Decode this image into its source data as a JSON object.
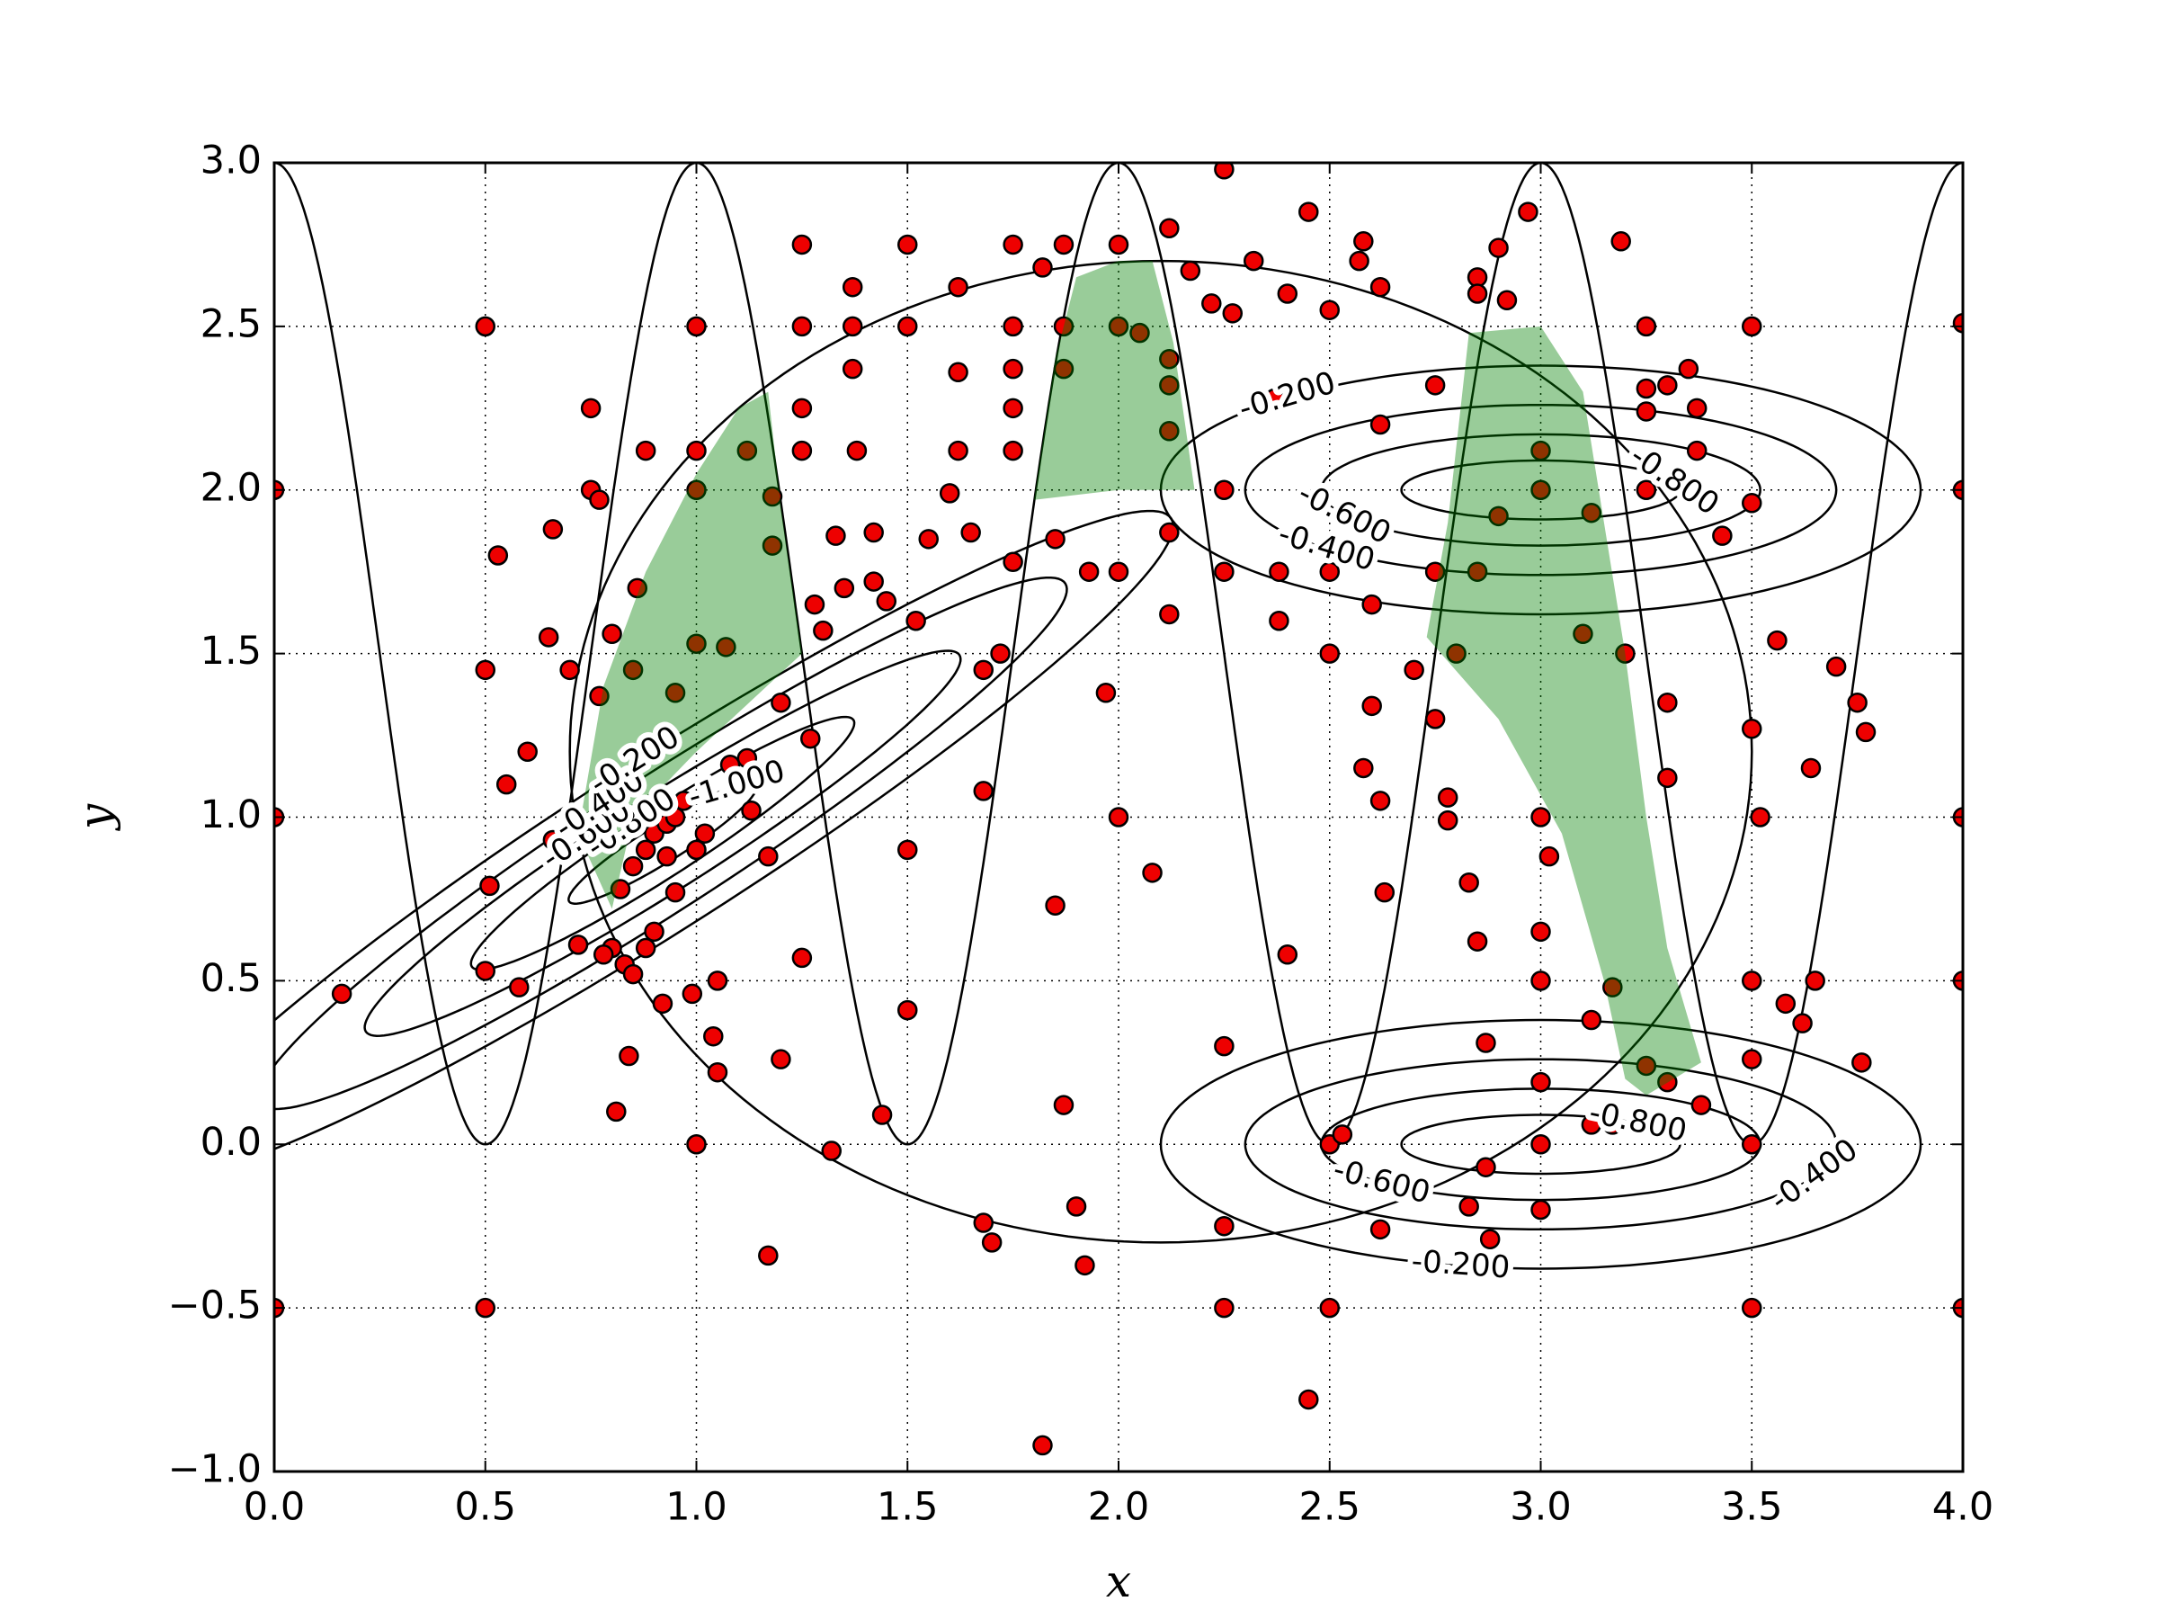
{
  "chart_data": {
    "type": "scatter",
    "x_label": "x",
    "y_label": "y",
    "xlim": [
      0,
      4
    ],
    "ylim": [
      -1,
      3
    ],
    "xticks": [
      {
        "value": 0,
        "label": "0.0"
      },
      {
        "value": 0.5,
        "label": "0.5"
      },
      {
        "value": 1,
        "label": "1.0"
      },
      {
        "value": 1.5,
        "label": "1.5"
      },
      {
        "value": 2,
        "label": "2.0"
      },
      {
        "value": 2.5,
        "label": "2.5"
      },
      {
        "value": 3,
        "label": "3.0"
      },
      {
        "value": 3.5,
        "label": "3.5"
      },
      {
        "value": 4,
        "label": "4.0"
      }
    ],
    "yticks": [
      {
        "value": -1,
        "label": "−1.0"
      },
      {
        "value": -0.5,
        "label": "−0.5"
      },
      {
        "value": 0,
        "label": "0.0"
      },
      {
        "value": 0.5,
        "label": "0.5"
      },
      {
        "value": 1,
        "label": "1.0"
      },
      {
        "value": 1.5,
        "label": "1.5"
      },
      {
        "value": 2,
        "label": "2.0"
      },
      {
        "value": 2.5,
        "label": "2.5"
      },
      {
        "value": 3,
        "label": "3.0"
      }
    ],
    "grid": true,
    "color": "#ee0000",
    "x": [
      0,
      0,
      0,
      0.5,
      0.5,
      0.5,
      0.5,
      0.53,
      0.55,
      0.6,
      0.65,
      0.66,
      0.75,
      0.75,
      0.77,
      0.7,
      0.16,
      0.51,
      0.58,
      0.66,
      0.77,
      0.8,
      0.85,
      0.86,
      0.88,
      1,
      1,
      1,
      1,
      0.95,
      1.07,
      1.12,
      1.18,
      1.18,
      1.25,
      1.25,
      1.25,
      1.25,
      1.37,
      1.37,
      1.37,
      1.38,
      1.5,
      1.5,
      1.62,
      1.62,
      1.62,
      1.75,
      1.75,
      1.75,
      1.75,
      1.75,
      1.82,
      1.87,
      1.87,
      1.87,
      2,
      2,
      2.05,
      2.12,
      2.17,
      2.25,
      2.22,
      2.27,
      2.32,
      2.4,
      2.45,
      2.5,
      2.57,
      2.58,
      2.62,
      2.37,
      2.62,
      2.75,
      2.85,
      2.85,
      2.9,
      2.92,
      2.97,
      3.25,
      3.5,
      3.19,
      4,
      4,
      4,
      4,
      4,
      3.5,
      3.5,
      3.65,
      3.58,
      3.5,
      3.52,
      3.64,
      3.7,
      3.75,
      3.77,
      3.56,
      3.3,
      3.3,
      3.35,
      3.37,
      3.37,
      3.5,
      3.43,
      3.3,
      3.25,
      3.25,
      3.25,
      3.2,
      3.1,
      3,
      3,
      3.12,
      2.9,
      2.85,
      2.75,
      2.8,
      2.7,
      2.6,
      2.5,
      2.5,
      2.38,
      2.38,
      2.25,
      2.25,
      2.12,
      2.12,
      2,
      1.97,
      1.72,
      1.68,
      1.68,
      1.5,
      1.5,
      1.44,
      1.32,
      1.25,
      1.2,
      1.17,
      1.04,
      1.05,
      1.05,
      0.99,
      1,
      0.81,
      0.84,
      0.92,
      2,
      2.08,
      1.85,
      1.87,
      1.9,
      1.92,
      1.68,
      1.7,
      1.82,
      2.25,
      2.25,
      2.25,
      2.4,
      2.45,
      2.5,
      2.5,
      2.53,
      2.62,
      2.63,
      2.62,
      2.58,
      2.6,
      2.75,
      2.78,
      2.78,
      2.83,
      2.85,
      2.87,
      2.87,
      2.88,
      2.83,
      3,
      3,
      3,
      3,
      3,
      3.02,
      3,
      3.12,
      3.17,
      3.25,
      3.3,
      3.38,
      3.5,
      3.62,
      3.76,
      3.5,
      3.12,
      3.17,
      1.12,
      1.17,
      1.08,
      1.13,
      0.83,
      0.8,
      0.78,
      0.72,
      0.85,
      0.88,
      0.9,
      0.95,
      0.85,
      0.88,
      0.9,
      0.93,
      0.95,
      0.97,
      1,
      1.02,
      0.93,
      0.82,
      1.3,
      1.35,
      1.42,
      1.45,
      1.52,
      1.55,
      1.6,
      1.28,
      1.27,
      1.2,
      1.33,
      1.42,
      1.65,
      1.75,
      1.85,
      1.93,
      2.12,
      2.12,
      2.12
    ],
    "values": [
      2,
      1,
      -0.5,
      2.5,
      -0.5,
      0.53,
      1.45,
      1.8,
      1.1,
      1.2,
      1.55,
      1.88,
      2.25,
      2,
      1.97,
      1.45,
      0.46,
      0.79,
      0.48,
      0.93,
      1.37,
      1.56,
      1.45,
      1.7,
      2.12,
      2.5,
      2.12,
      2,
      1.53,
      1.38,
      1.52,
      2.12,
      1.98,
      1.83,
      2.75,
      2.5,
      2.25,
      2.12,
      2.62,
      2.5,
      2.37,
      2.12,
      2.75,
      2.5,
      2.62,
      2.36,
      2.12,
      2.75,
      2.5,
      2.37,
      2.25,
      2.12,
      2.68,
      2.75,
      2.5,
      2.37,
      2.75,
      2.5,
      2.48,
      2.8,
      2.67,
      2.98,
      2.57,
      2.54,
      2.7,
      2.6,
      2.85,
      2.55,
      2.7,
      2.76,
      2.62,
      2.28,
      2.2,
      2.32,
      2.65,
      2.6,
      2.74,
      2.58,
      2.85,
      2.5,
      2.5,
      2.76,
      2.51,
      2,
      1,
      0.5,
      -0.5,
      -0.5,
      0.5,
      0.5,
      0.43,
      1.27,
      1,
      1.15,
      1.46,
      1.35,
      1.26,
      1.54,
      1.35,
      1.12,
      2.37,
      2.25,
      2.12,
      1.96,
      1.86,
      2.32,
      2.31,
      2.24,
      2,
      1.5,
      1.56,
      2.12,
      2,
      1.93,
      1.92,
      1.75,
      1.75,
      1.5,
      1.45,
      1.65,
      1.75,
      1.5,
      1.75,
      1.6,
      2,
      1.75,
      1.87,
      1.62,
      1.75,
      1.38,
      1.5,
      1.45,
      1.08,
      0.9,
      0.41,
      0.09,
      -0.02,
      0.57,
      0.26,
      -0.34,
      0.33,
      0.22,
      0.5,
      0.46,
      0,
      0.1,
      0.27,
      0.43,
      1,
      0.83,
      0.73,
      0.12,
      -0.19,
      -0.37,
      -0.24,
      -0.3,
      -0.92,
      -0.5,
      -0.25,
      0.3,
      0.58,
      -0.78,
      -0.5,
      0,
      0.03,
      -0.26,
      0.77,
      1.05,
      1.15,
      1.34,
      1.3,
      1.06,
      0.99,
      0.8,
      0.62,
      0.31,
      -0.07,
      -0.29,
      -0.19,
      -0.2,
      0,
      0.19,
      0.5,
      0.65,
      0.88,
      1,
      0.38,
      0.48,
      0.24,
      0.19,
      0.12,
      0.26,
      0.37,
      0.25,
      0,
      0.06,
      0.06,
      1.18,
      0.88,
      1.16,
      1.02,
      0.55,
      0.6,
      0.58,
      0.61,
      0.52,
      0.6,
      0.65,
      0.77,
      0.85,
      0.9,
      0.95,
      0.98,
      1,
      1.05,
      0.9,
      0.95,
      0.88,
      0.78,
      1.57,
      1.7,
      1.72,
      1.66,
      1.6,
      1.85,
      1.99,
      1.65,
      1.24,
      1.35,
      1.86,
      1.87,
      1.87,
      1.78,
      1.85,
      1.75,
      2.18,
      2.32,
      2.4
    ],
    "contours": [
      {
        "center": [
          3,
          2
        ],
        "a": [
          0.33,
          0
        ],
        "b": [
          0,
          0.09
        ],
        "level": -0.8,
        "level_label": "-0.800"
      },
      {
        "center": [
          3,
          2
        ],
        "a": [
          0.52,
          0
        ],
        "b": [
          0,
          0.17
        ],
        "level": -0.6,
        "level_label": "-0.600"
      },
      {
        "center": [
          3,
          2
        ],
        "a": [
          0.7,
          0
        ],
        "b": [
          0,
          0.26
        ],
        "level": -0.4,
        "level_label": "-0.400"
      },
      {
        "center": [
          3,
          2
        ],
        "a": [
          0.9,
          0
        ],
        "b": [
          0,
          0.38
        ],
        "level": -0.2,
        "level_label": "-0.200"
      },
      {
        "center": [
          3,
          0
        ],
        "a": [
          0.33,
          0
        ],
        "b": [
          0,
          0.09
        ],
        "level": -0.8,
        "level_label": "-0.800"
      },
      {
        "center": [
          3,
          0
        ],
        "a": [
          0.52,
          0
        ],
        "b": [
          0,
          0.17
        ],
        "level": -0.6,
        "level_label": "-0.600"
      },
      {
        "center": [
          3,
          0
        ],
        "a": [
          0.7,
          0
        ],
        "b": [
          0,
          0.26
        ],
        "level": -0.4,
        "level_label": "-0.400"
      },
      {
        "center": [
          3,
          0
        ],
        "a": [
          0.9,
          0
        ],
        "b": [
          0,
          0.38
        ],
        "level": -0.2,
        "level_label": "-0.200"
      },
      {
        "center": [
          0.92,
          0.92
        ],
        "a": [
          0.22,
          0.18
        ],
        "b": [
          -0.035,
          0.04
        ],
        "level": -1.0,
        "level_label": "-1.000"
      },
      {
        "center": [
          0.92,
          0.92
        ],
        "a": [
          0.45,
          0.38
        ],
        "b": [
          -0.06,
          0.07
        ],
        "level": -0.8,
        "level_label": "-0.800"
      },
      {
        "center": [
          0.92,
          0.92
        ],
        "a": [
          0.7,
          0.58
        ],
        "b": [
          -0.09,
          0.1
        ],
        "level": -0.6,
        "level_label": "-0.600"
      },
      {
        "center": [
          0.92,
          0.92
        ],
        "a": [
          0.95,
          0.8
        ],
        "b": [
          -0.12,
          0.14
        ],
        "level": -0.4,
        "level_label": "-0.400"
      },
      {
        "center": [
          0.92,
          0.92
        ],
        "a": [
          1.2,
          1.0
        ],
        "b": [
          -0.15,
          0.18
        ],
        "level": -0.2,
        "level_label": "-0.200"
      }
    ],
    "sine": {
      "offset": 1.5,
      "amplitude": 1.5,
      "period": 1
    },
    "ellipse": {
      "center": [
        2.1,
        1.2
      ],
      "rx": 1.4,
      "ry": 1.5
    },
    "region_color": "#008000",
    "regions": [
      {
        "x": [
          0.72,
          0.78,
          0.88,
          1.0,
          1.1,
          1.17,
          1.2,
          1.25,
          1.0,
          0.85,
          0.8
        ],
        "y": [
          0.95,
          1.4,
          1.75,
          2.05,
          2.25,
          2.3,
          1.95,
          1.5,
          1.2,
          1.0,
          0.72
        ]
      },
      {
        "x": [
          1.8,
          1.85,
          1.9,
          2.0,
          2.08,
          2.13,
          2.18,
          2.0
        ],
        "y": [
          1.97,
          2.4,
          2.65,
          2.7,
          2.7,
          2.45,
          2.0,
          2.0
        ]
      },
      {
        "x": [
          2.83,
          3.0,
          3.1,
          3.15,
          3.2,
          3.25,
          3.3,
          3.38,
          3.25,
          3.2,
          3.15,
          3.05,
          2.9,
          2.73,
          2.78
        ],
        "y": [
          2.48,
          2.5,
          2.3,
          1.9,
          1.5,
          1.0,
          0.6,
          0.25,
          0.15,
          0.2,
          0.5,
          0.95,
          1.3,
          1.55,
          1.9
        ]
      }
    ]
  }
}
